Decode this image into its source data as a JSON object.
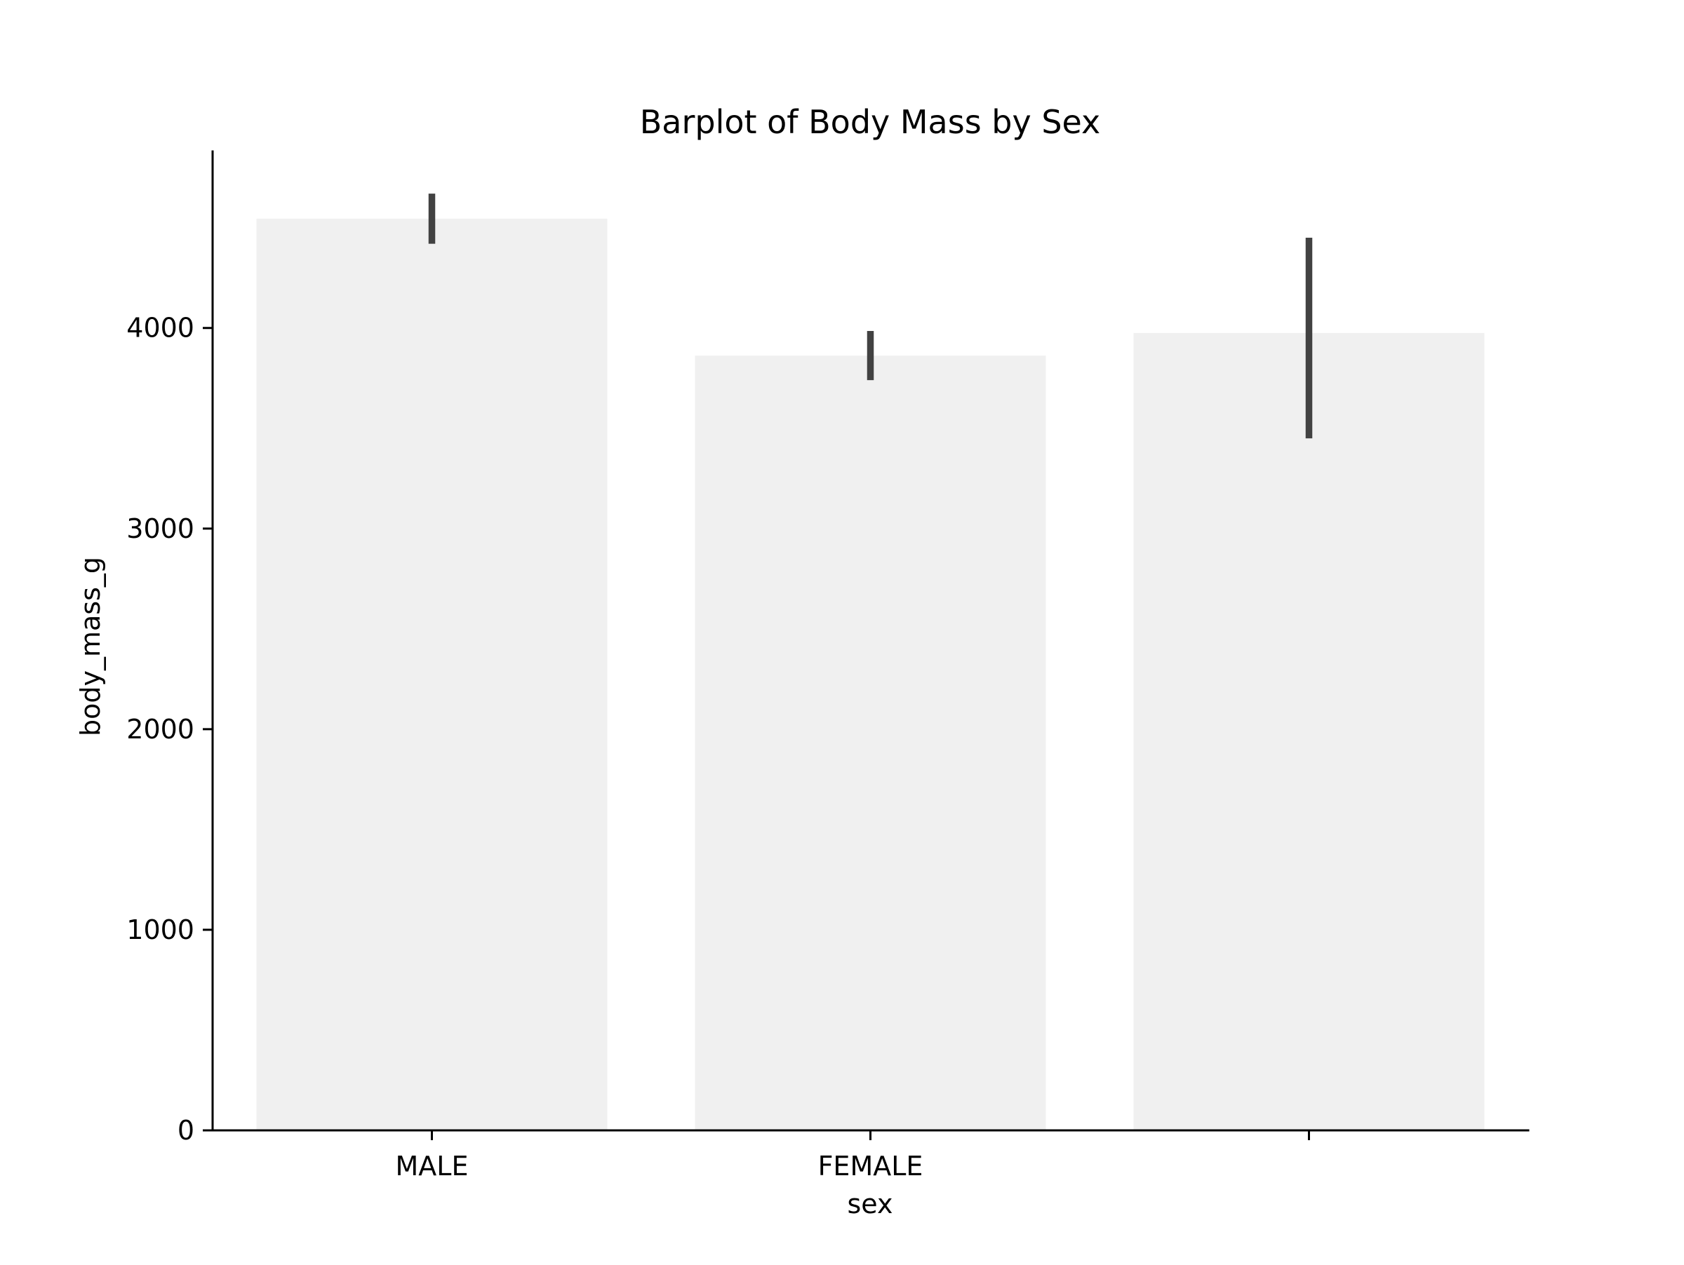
{
  "chart_data": {
    "type": "bar",
    "title": "Barplot of Body Mass by Sex",
    "xlabel": "sex",
    "ylabel": "body_mass_g",
    "categories": [
      "MALE",
      "FEMALE",
      ""
    ],
    "values": [
      4545,
      3862,
      3975
    ],
    "error_bars": [
      {
        "low": 4420,
        "high": 4670
      },
      {
        "low": 3740,
        "high": 3985
      },
      {
        "low": 3450,
        "high": 4450
      }
    ],
    "ylim": [
      0,
      4880
    ],
    "yticks": [
      0,
      1000,
      2000,
      3000,
      4000
    ],
    "ytick_labels": [
      "0",
      "1000",
      "2000",
      "3000",
      "4000"
    ],
    "grid": false,
    "legend": "none",
    "colors": {
      "bar": "#f0f0f0",
      "error_bar": "#424242",
      "axis": "#000000"
    }
  }
}
